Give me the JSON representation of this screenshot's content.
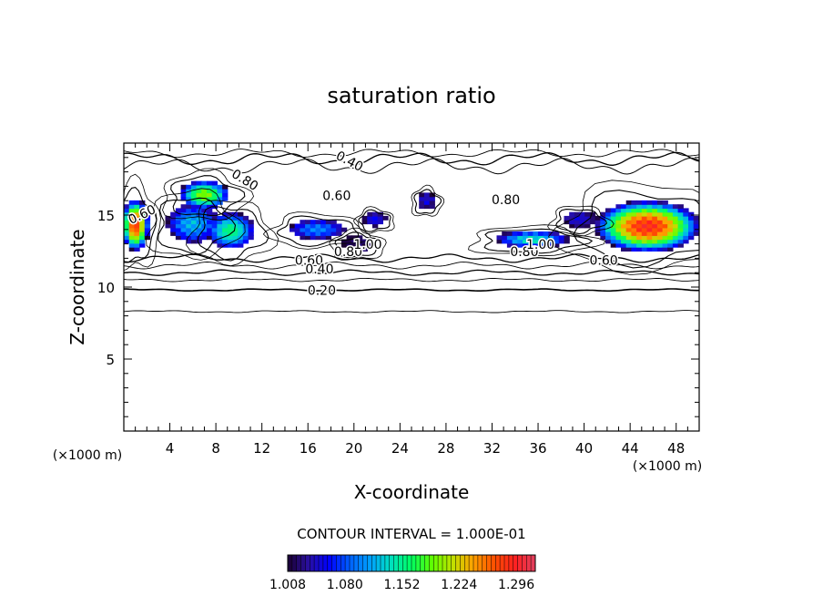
{
  "chart_data": {
    "type": "heatmap",
    "title": "saturation ratio",
    "xlabel": "X-coordinate",
    "ylabel": "Z-coordinate",
    "x_unit": "(×1000 m)",
    "y_unit": "(×1000 m)",
    "xlim": [
      0,
      50
    ],
    "ylim": [
      0,
      20
    ],
    "x_ticks": [
      4,
      8,
      12,
      16,
      20,
      24,
      28,
      32,
      36,
      40,
      44,
      48
    ],
    "y_ticks": [
      5,
      10,
      15
    ],
    "contour_interval_label": "CONTOUR INTERVAL = 1.000E-01",
    "contour_levels": [
      0.2,
      0.4,
      0.6,
      0.8,
      1.0
    ],
    "contour_labels": [
      {
        "text": "0.40",
        "x": 19.6,
        "y": 18.7,
        "rot": 28
      },
      {
        "text": "0.80",
        "x": 10.5,
        "y": 17.4,
        "rot": 32
      },
      {
        "text": "0.60",
        "x": 18.5,
        "y": 16.3,
        "rot": 0
      },
      {
        "text": "0.80",
        "x": 33.2,
        "y": 16.0,
        "rot": 0
      },
      {
        "text": "0.60",
        "x": 1.6,
        "y": 15.0,
        "rot": -25
      },
      {
        "text": "0.80",
        "x": 19.5,
        "y": 12.4,
        "rot": 0
      },
      {
        "text": "0.60",
        "x": 16.1,
        "y": 11.8,
        "rot": 0
      },
      {
        "text": "0.40",
        "x": 17.0,
        "y": 11.2,
        "rot": 0
      },
      {
        "text": "0.20",
        "x": 17.2,
        "y": 9.7,
        "rot": 0
      },
      {
        "text": "1.00",
        "x": 21.2,
        "y": 12.9,
        "rot": 0
      },
      {
        "text": "0.80",
        "x": 34.8,
        "y": 12.4,
        "rot": 0
      },
      {
        "text": "1.00",
        "x": 36.2,
        "y": 12.9,
        "rot": 0
      },
      {
        "text": "0.60",
        "x": 41.7,
        "y": 11.8,
        "rot": 0
      }
    ],
    "supersaturated_regions": [
      {
        "xc": 1.0,
        "yc": 14.2,
        "rx": 1.2,
        "ry": 1.8,
        "peak": 1.28
      },
      {
        "xc": 7.0,
        "yc": 16.3,
        "rx": 2.2,
        "ry": 1.0,
        "peak": 1.2
      },
      {
        "xc": 6.0,
        "yc": 14.3,
        "rx": 2.3,
        "ry": 1.4,
        "peak": 1.12
      },
      {
        "xc": 9.3,
        "yc": 13.8,
        "rx": 2.1,
        "ry": 1.3,
        "peak": 1.16
      },
      {
        "xc": 16.8,
        "yc": 13.9,
        "rx": 2.5,
        "ry": 0.7,
        "peak": 1.1
      },
      {
        "xc": 21.8,
        "yc": 14.6,
        "rx": 1.0,
        "ry": 0.5,
        "peak": 1.06
      },
      {
        "xc": 20.3,
        "yc": 12.9,
        "rx": 1.4,
        "ry": 0.6,
        "peak": 1.02
      },
      {
        "xc": 26.3,
        "yc": 15.9,
        "rx": 0.8,
        "ry": 0.6,
        "peak": 1.05
      },
      {
        "xc": 35.5,
        "yc": 13.2,
        "rx": 3.2,
        "ry": 0.6,
        "peak": 1.14
      },
      {
        "xc": 39.6,
        "yc": 14.6,
        "rx": 1.5,
        "ry": 0.6,
        "peak": 1.05
      },
      {
        "xc": 45.5,
        "yc": 14.1,
        "rx": 4.6,
        "ry": 1.8,
        "peak": 1.29
      }
    ],
    "colorbar": {
      "min": 1.008,
      "max": 1.32,
      "ticks": [
        "1.008",
        "1.080",
        "1.152",
        "1.224",
        "1.296"
      ],
      "colors": [
        "#1a0030",
        "#2a10a0",
        "#0000ff",
        "#0060ff",
        "#00a0ff",
        "#00e0c0",
        "#00ff60",
        "#60ff00",
        "#c0e000",
        "#ffa000",
        "#ff5000",
        "#ff2020",
        "#e04060"
      ]
    }
  }
}
